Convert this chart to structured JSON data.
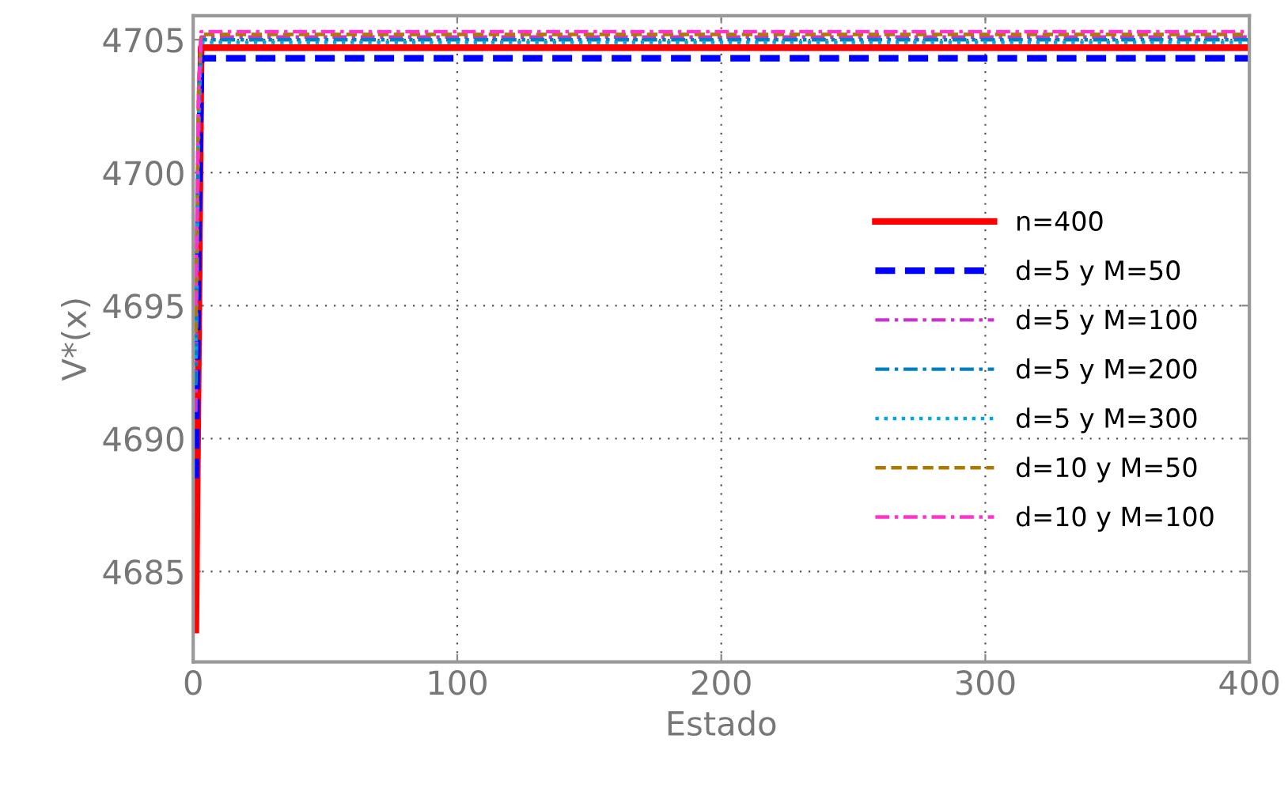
{
  "chart_data": {
    "type": "line",
    "xlabel": "Estado",
    "ylabel": "V*(x)",
    "xlim": [
      0,
      400
    ],
    "ylim": [
      4681.6,
      4705.9
    ],
    "xticks": [
      0,
      100,
      200,
      300,
      400
    ],
    "yticks": [
      4685,
      4690,
      4695,
      4700,
      4705
    ],
    "grid": true,
    "legend": "right",
    "marker": "none",
    "series": [
      {
        "name": "n=400",
        "color": "#ff0000",
        "line_style": "solid",
        "x": [
          1,
          2,
          3,
          400
        ],
        "values": [
          4682.8,
          4693.5,
          4704.7,
          4704.7
        ]
      },
      {
        "name": "d=5 y M=50",
        "color": "#0000ff",
        "line_style": "dashed",
        "x": [
          1,
          2,
          3,
          400
        ],
        "values": [
          4688.5,
          4698,
          4704.3,
          4704.3
        ]
      },
      {
        "name": "d=5 y M=100",
        "color": "#cc33cc",
        "line_style": "dashdot",
        "x": [
          1,
          2,
          3,
          400
        ],
        "values": [
          4691,
          4701,
          4705.1,
          4705.1
        ]
      },
      {
        "name": "d=5 y M=200",
        "color": "#0080c0",
        "line_style": "dashdot",
        "x": [
          1,
          2,
          3,
          400
        ],
        "values": [
          4692,
          4702,
          4705,
          4705
        ]
      },
      {
        "name": "d=5 y M=300",
        "color": "#00a8e0",
        "line_style": "dotted",
        "x": [
          1,
          2,
          3,
          400
        ],
        "values": [
          4693,
          4702,
          4704.9,
          4704.9
        ]
      },
      {
        "name": "d=10 y M=50",
        "color": "#b07800",
        "line_style": "dashed",
        "x": [
          1,
          2,
          3,
          400
        ],
        "values": [
          4694,
          4703,
          4705.2,
          4705.2
        ]
      },
      {
        "name": "d=10 y M=100",
        "color": "#ff33cc",
        "line_style": "dashdot",
        "x": [
          1,
          2,
          3,
          400
        ],
        "values": [
          4695,
          4703,
          4705.3,
          4705.3
        ]
      }
    ]
  }
}
